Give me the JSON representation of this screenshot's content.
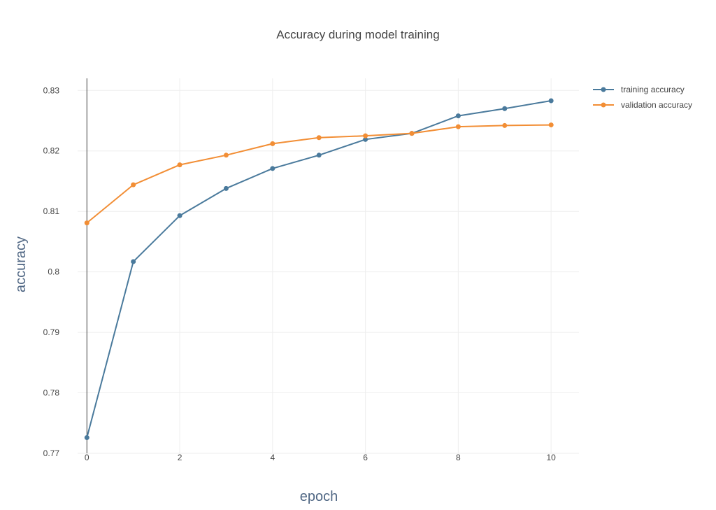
{
  "chart_data": {
    "type": "line",
    "title": "Accuracy during model training",
    "xlabel": "epoch",
    "ylabel": "accuracy",
    "xlim": [
      -0.2,
      10.6
    ],
    "ylim": [
      0.77,
      0.832
    ],
    "x_ticks": [
      0,
      2,
      4,
      6,
      8,
      10
    ],
    "x_tick_labels": [
      "0",
      "2",
      "4",
      "6",
      "8",
      "10"
    ],
    "y_ticks": [
      0.77,
      0.78,
      0.79,
      0.8,
      0.81,
      0.82,
      0.83
    ],
    "y_tick_labels": [
      "0.77",
      "0.78",
      "0.79",
      "0.8",
      "0.81",
      "0.82",
      "0.83"
    ],
    "grid": true,
    "legend_position": "top-right",
    "x": [
      0,
      1,
      2,
      3,
      4,
      5,
      6,
      7,
      8,
      9,
      10
    ],
    "series": [
      {
        "name": "training accuracy",
        "color": "#4a7a9c",
        "values": [
          0.7726,
          0.8017,
          0.8093,
          0.8138,
          0.8171,
          0.8193,
          0.8219,
          0.8229,
          0.8258,
          0.827,
          0.8283
        ]
      },
      {
        "name": "validation accuracy",
        "color": "#f28e35",
        "values": [
          0.8081,
          0.8144,
          0.8177,
          0.8193,
          0.8212,
          0.8222,
          0.8225,
          0.8229,
          0.824,
          0.8242,
          0.8243
        ]
      }
    ]
  }
}
